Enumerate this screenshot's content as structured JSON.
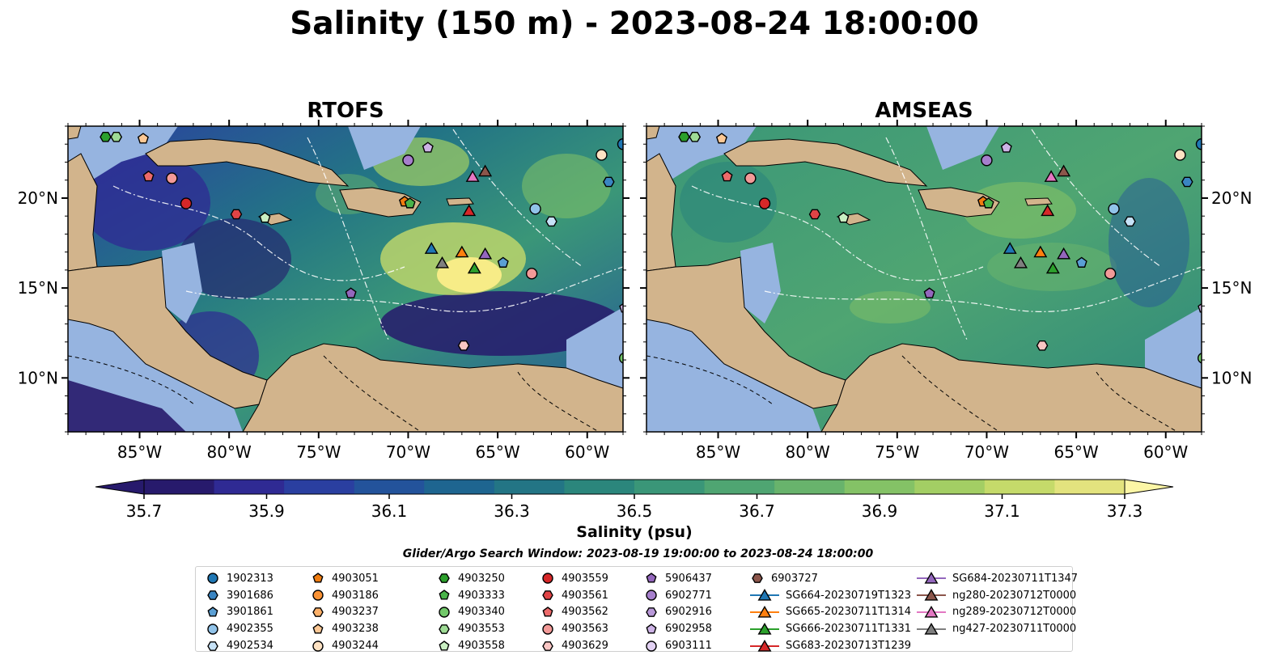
{
  "title": "Salinity (150 m) - 2023-08-24 18:00:00",
  "panels": [
    {
      "title": "RTOFS"
    },
    {
      "title": "AMSEAS"
    }
  ],
  "map_extent": {
    "lon": [
      -89,
      -58
    ],
    "lat": [
      7,
      24
    ]
  },
  "lon_ticks": [
    "85°W",
    "80°W",
    "75°W",
    "70°W",
    "65°W",
    "60°W"
  ],
  "lon_tick_values": [
    -85,
    -80,
    -75,
    -70,
    -65,
    -60
  ],
  "lat_ticks": [
    "20°N",
    "15°N",
    "10°N"
  ],
  "lat_tick_values": [
    20,
    15,
    10
  ],
  "colors": {
    "land": "#d2b48c",
    "shallow": "#96b4e0",
    "border": "#000000"
  },
  "chart_data": {
    "type": "heatmap",
    "colorbar": {
      "label": "Salinity (psu)",
      "ticks": [
        "35.7",
        "35.9",
        "36.1",
        "36.3",
        "36.5",
        "36.7",
        "36.9",
        "37.1",
        "37.3"
      ],
      "tick_values": [
        35.7,
        35.9,
        36.1,
        36.3,
        36.5,
        36.7,
        36.9,
        37.1,
        37.3
      ],
      "range": [
        35.7,
        37.3
      ],
      "colormap": [
        "#271a6c",
        "#2f2a93",
        "#2a3fa0",
        "#23539b",
        "#1e6590",
        "#237585",
        "#2b867c",
        "#3a9678",
        "#4fa572",
        "#68b36c",
        "#84c266",
        "#a3ce64",
        "#c5da6a",
        "#e3e37e"
      ]
    }
  },
  "window_text": "Glider/Argo Search Window: 2023-08-19 19:00:00 to 2023-08-24 18:00:00",
  "legend": {
    "columns": [
      [
        {
          "label": "1902313",
          "marker": "circle",
          "color": "#1f77b4"
        },
        {
          "label": "3901686",
          "marker": "hexagon",
          "color": "#3a85c2"
        },
        {
          "label": "3901861",
          "marker": "pentagon",
          "color": "#5a9fd4"
        },
        {
          "label": "4902355",
          "marker": "circle",
          "color": "#91c3e9"
        },
        {
          "label": "4902534",
          "marker": "hexagon",
          "color": "#c6e2f7"
        }
      ],
      [
        {
          "label": "4903051",
          "marker": "pentagon",
          "color": "#f07c10"
        },
        {
          "label": "4903186",
          "marker": "circle",
          "color": "#fa9234"
        },
        {
          "label": "4903237",
          "marker": "hexagon",
          "color": "#fcb068"
        },
        {
          "label": "4903238",
          "marker": "pentagon",
          "color": "#fdc895"
        },
        {
          "label": "4903244",
          "marker": "circle",
          "color": "#fee2c3"
        }
      ],
      [
        {
          "label": "4903250",
          "marker": "hexagon",
          "color": "#2ca02c"
        },
        {
          "label": "4903333",
          "marker": "pentagon",
          "color": "#49b349"
        },
        {
          "label": "4903340",
          "marker": "circle",
          "color": "#72c96a"
        },
        {
          "label": "4903553",
          "marker": "hexagon",
          "color": "#9edb95"
        },
        {
          "label": "4903558",
          "marker": "pentagon",
          "color": "#c9efc2"
        }
      ],
      [
        {
          "label": "4903559",
          "marker": "circle",
          "color": "#d62728"
        },
        {
          "label": "4903561",
          "marker": "hexagon",
          "color": "#e04446"
        },
        {
          "label": "4903562",
          "marker": "pentagon",
          "color": "#ec6a6a"
        },
        {
          "label": "4903563",
          "marker": "circle",
          "color": "#f39a98"
        },
        {
          "label": "4903629",
          "marker": "hexagon",
          "color": "#f9c6c4"
        }
      ],
      [
        {
          "label": "5906437",
          "marker": "pentagon",
          "color": "#9467bd"
        },
        {
          "label": "6902771",
          "marker": "circle",
          "color": "#a67fcc"
        },
        {
          "label": "6902916",
          "marker": "hexagon",
          "color": "#b898d8"
        },
        {
          "label": "6902958",
          "marker": "pentagon",
          "color": "#cdb3e6"
        },
        {
          "label": "6903111",
          "marker": "circle",
          "color": "#e2d1f3"
        }
      ],
      [
        {
          "label": "6903727",
          "marker": "hexagon",
          "color": "#8c564b"
        },
        {
          "label": "SG664-20230719T1323",
          "marker": "triangle",
          "color": "#1f77b4"
        },
        {
          "label": "SG665-20230711T1314",
          "marker": "triangle",
          "color": "#ff7f0e"
        },
        {
          "label": "SG666-20230711T1331",
          "marker": "triangle",
          "color": "#2ca02c"
        },
        {
          "label": "SG683-20230713T1239",
          "marker": "triangle",
          "color": "#d62728"
        }
      ],
      [
        {
          "label": "SG684-20230711T1347",
          "marker": "triangle",
          "color": "#9467bd"
        },
        {
          "label": "ng280-20230712T0000",
          "marker": "triangle",
          "color": "#8c564b"
        },
        {
          "label": "ng289-20230712T0000",
          "marker": "triangle",
          "color": "#e377c2"
        },
        {
          "label": "ng427-20230711T0000",
          "marker": "triangle",
          "color": "#7f7f7f"
        }
      ]
    ]
  },
  "observations": [
    {
      "id": "4903250",
      "lon": -86.9,
      "lat": 23.4
    },
    {
      "id": "4903553",
      "lon": -86.3,
      "lat": 23.4
    },
    {
      "id": "4903238",
      "lon": -84.8,
      "lat": 23.3
    },
    {
      "id": "4903562",
      "lon": -84.5,
      "lat": 21.2
    },
    {
      "id": "4903563",
      "lon": -83.2,
      "lat": 21.1
    },
    {
      "id": "4903559",
      "lon": -82.4,
      "lat": 19.7
    },
    {
      "id": "4903561",
      "lon": -79.6,
      "lat": 19.1
    },
    {
      "id": "4903558",
      "lon": -78.0,
      "lat": 18.9
    },
    {
      "id": "4903051",
      "lon": -70.2,
      "lat": 19.8
    },
    {
      "id": "4903333",
      "lon": -69.9,
      "lat": 19.7
    },
    {
      "id": "6902771",
      "lon": -70.0,
      "lat": 22.1
    },
    {
      "id": "6902958",
      "lon": -68.9,
      "lat": 22.8
    },
    {
      "id": "4903244",
      "lon": -59.2,
      "lat": 22.4
    },
    {
      "id": "1902313",
      "lon": -58.0,
      "lat": 23.0
    },
    {
      "id": "3901686",
      "lon": -58.8,
      "lat": 20.9
    },
    {
      "id": "4902355",
      "lon": -62.9,
      "lat": 19.4
    },
    {
      "id": "4902534",
      "lon": -62.0,
      "lat": 18.7
    },
    {
      "id": "3901861",
      "lon": -64.7,
      "lat": 16.4
    },
    {
      "id": "4903563",
      "lon": -63.1,
      "lat": 15.8
    },
    {
      "id": "5906437",
      "lon": -73.2,
      "lat": 14.7
    },
    {
      "id": "4903629",
      "lon": -66.9,
      "lat": 11.8
    },
    {
      "id": "6902958",
      "lon": -57.9,
      "lat": 13.9
    },
    {
      "id": "4903340",
      "lon": -57.9,
      "lat": 11.1
    },
    {
      "id": "SG683-20230713T1239",
      "lon": -66.6,
      "lat": 19.3
    },
    {
      "id": "ng289-20230712T0000",
      "lon": -66.4,
      "lat": 21.2
    },
    {
      "id": "ng280-20230712T0000",
      "lon": -65.7,
      "lat": 21.5
    },
    {
      "id": "SG664-20230719T1323",
      "lon": -68.7,
      "lat": 17.2
    },
    {
      "id": "ng427-20230711T0000",
      "lon": -68.1,
      "lat": 16.4
    },
    {
      "id": "SG665-20230711T1314",
      "lon": -67.0,
      "lat": 17.0
    },
    {
      "id": "SG666-20230711T1331",
      "lon": -66.3,
      "lat": 16.1
    },
    {
      "id": "SG684-20230711T1347",
      "lon": -65.7,
      "lat": 16.9
    }
  ]
}
